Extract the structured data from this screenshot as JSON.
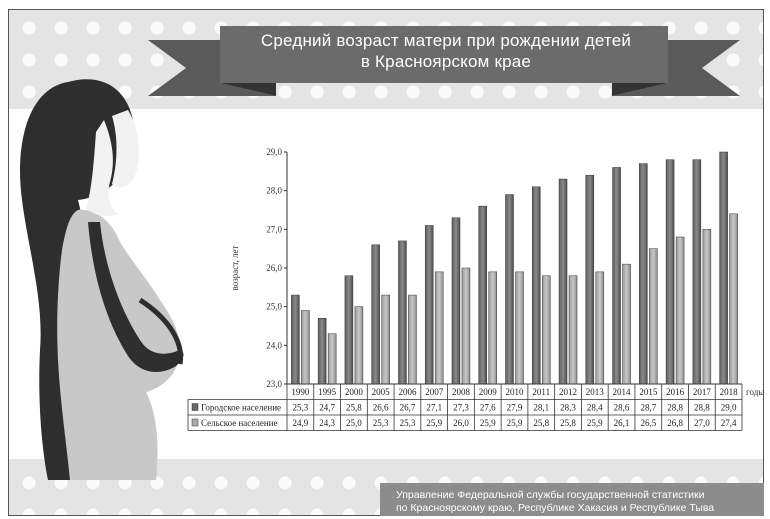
{
  "title": {
    "line1": "Средний возраст матери при рождении детей",
    "line2": "в Красноярском крае"
  },
  "footer": {
    "line1": "Управление Федеральной службы государственной статистики",
    "line2": "по Красноярскому краю, Республике Хакасия и Республике Тыва"
  },
  "colors": {
    "urban": "#7f7f7f",
    "rural": "#b5b5b5",
    "dots_bg": "#e4e4e4",
    "ribbon": "#666666"
  },
  "chart_data": {
    "type": "bar",
    "ylabel": "возраст, лет",
    "xlabel": "годы",
    "ylim": [
      23.0,
      29.0
    ],
    "yticks": [
      "23,0",
      "24,0",
      "25,0",
      "26,0",
      "27,0",
      "28,0",
      "29,0"
    ],
    "grid": false,
    "legend": "table-below",
    "categories": [
      "1990",
      "1995",
      "2000",
      "2005",
      "2006",
      "2007",
      "2008",
      "2009",
      "2010",
      "2011",
      "2012",
      "2013",
      "2014",
      "2015",
      "2016",
      "2017",
      "2018"
    ],
    "series": [
      {
        "name": "Городское население",
        "values": [
          25.3,
          24.7,
          25.8,
          26.6,
          26.7,
          27.1,
          27.3,
          27.6,
          27.9,
          28.1,
          28.3,
          28.4,
          28.6,
          28.7,
          28.8,
          28.8,
          29.0
        ],
        "labels": [
          "25,3",
          "24,7",
          "25,8",
          "26,6",
          "26,7",
          "27,1",
          "27,3",
          "27,6",
          "27,9",
          "28,1",
          "28,3",
          "28,4",
          "28,6",
          "28,7",
          "28,8",
          "28,8",
          "29,0"
        ]
      },
      {
        "name": "Сельское население",
        "values": [
          24.9,
          24.3,
          25.0,
          25.3,
          25.3,
          25.9,
          26.0,
          25.9,
          25.9,
          25.8,
          25.8,
          25.9,
          26.1,
          26.5,
          26.8,
          27.0,
          27.4
        ],
        "labels": [
          "24,9",
          "24,3",
          "25,0",
          "25,3",
          "25,3",
          "25,9",
          "26,0",
          "25,9",
          "25,9",
          "25,8",
          "25,8",
          "25,9",
          "26,1",
          "26,5",
          "26,8",
          "27,0",
          "27,4"
        ]
      }
    ]
  }
}
